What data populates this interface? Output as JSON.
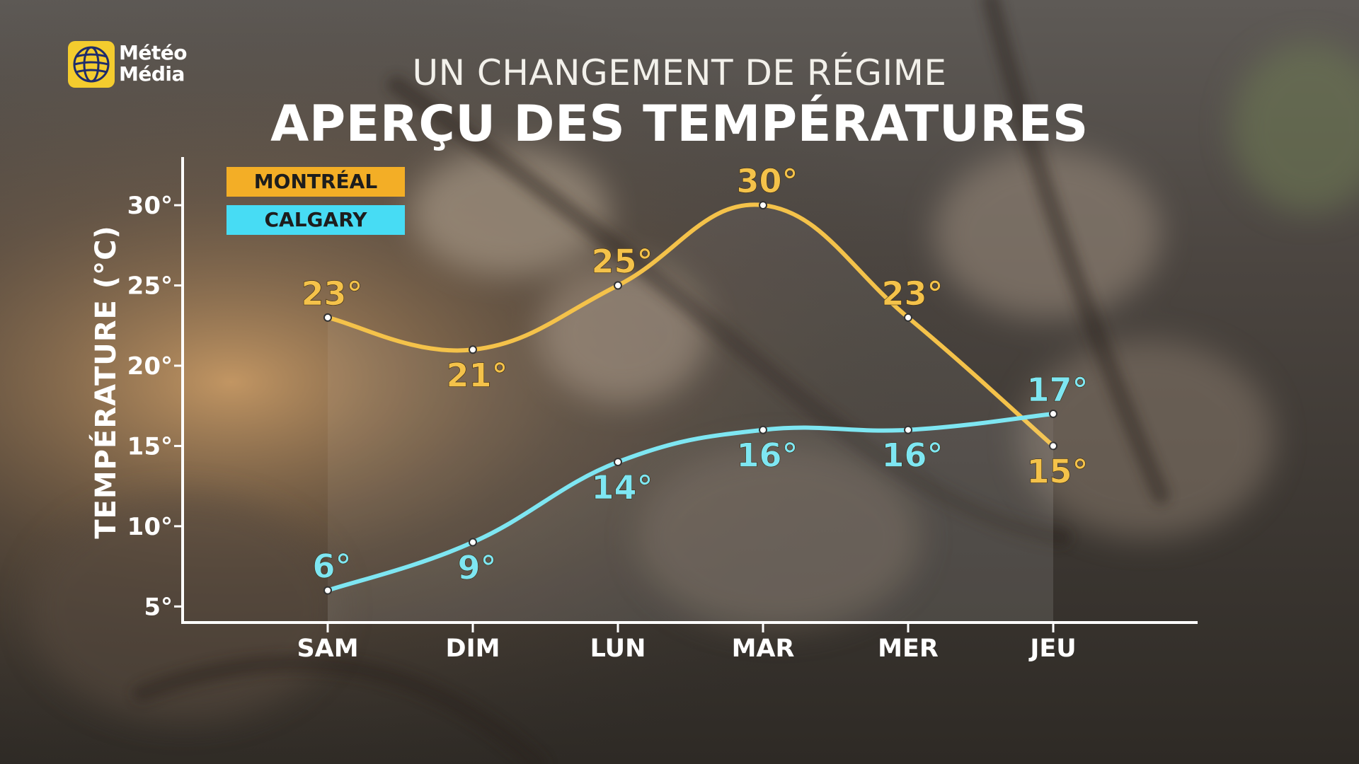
{
  "brand": {
    "line1": "Météo",
    "line2": "Média",
    "logo_color": "#f4cc2e",
    "logo_icon": "globe-icon"
  },
  "header": {
    "subtitle": "UN CHANGEMENT DE RÉGIME",
    "title": "APERÇU DES TEMPÉRATURES"
  },
  "colors": {
    "montreal": "#f4c24a",
    "calgary": "#7ee6f2",
    "legend_montreal": "#f3ae26",
    "legend_calgary": "#47dcf4",
    "axis": "#ffffff"
  },
  "chart_data": {
    "type": "line",
    "title": "APERÇU DES TEMPÉRATURES",
    "xlabel": "",
    "ylabel": "TEMPÉRATURE (°C)",
    "categories": [
      "SAM",
      "DIM",
      "LUN",
      "MAR",
      "MER",
      "JEU"
    ],
    "ylim": [
      4,
      33
    ],
    "yticks": [
      5,
      10,
      15,
      20,
      25,
      30
    ],
    "ytick_labels": [
      "5°",
      "10°",
      "15°",
      "20°",
      "25°",
      "30°"
    ],
    "grid": false,
    "legend_position": "top-left",
    "series": [
      {
        "name": "MONTRÉAL",
        "values": [
          23,
          21,
          25,
          30,
          23,
          15
        ],
        "labels": [
          "23°",
          "21°",
          "25°",
          "30°",
          "23°",
          "15°"
        ],
        "label_side": [
          "above",
          "below",
          "above",
          "above",
          "above",
          "below"
        ]
      },
      {
        "name": "CALGARY",
        "values": [
          6,
          9,
          14,
          16,
          16,
          17
        ],
        "labels": [
          "6°",
          "9°",
          "14°",
          "16°",
          "16°",
          "17°"
        ],
        "label_side": [
          "above",
          "below",
          "below",
          "below",
          "below",
          "above"
        ]
      }
    ]
  }
}
